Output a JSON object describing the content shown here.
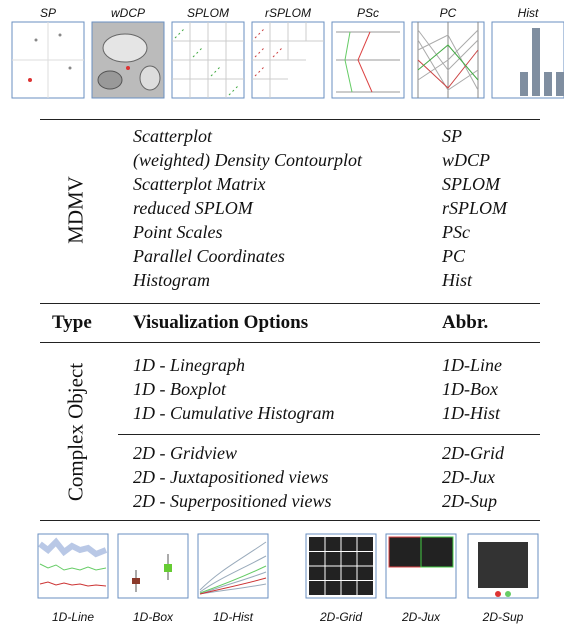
{
  "thumbnails_top": [
    "SP",
    "wDCP",
    "SPLOM",
    "rSPLOM",
    "PSc",
    "PC",
    "Hist"
  ],
  "table": {
    "header": {
      "type": "Type",
      "options": "Visualization Options",
      "abbr": "Abbr."
    },
    "groups": [
      {
        "type": "MDMV",
        "rows": [
          {
            "option": "Scatterplot",
            "abbr": "SP"
          },
          {
            "option": "(weighted) Density Contourplot",
            "abbr": "wDCP"
          },
          {
            "option": "Scatterplot Matrix",
            "abbr": "SPLOM"
          },
          {
            "option": "reduced SPLOM",
            "abbr": "rSPLOM"
          },
          {
            "option": "Point Scales",
            "abbr": "PSc"
          },
          {
            "option": "Parallel Coordinates",
            "abbr": "PC"
          },
          {
            "option": "Histogram",
            "abbr": "Hist"
          }
        ]
      },
      {
        "type": "Complex Object",
        "rows": [
          {
            "option": "1D - Linegraph",
            "abbr": "1D-Line"
          },
          {
            "option": "1D - Boxplot",
            "abbr": "1D-Box"
          },
          {
            "option": "1D - Cumulative Histogram",
            "abbr": "1D-Hist"
          },
          {
            "option": "2D - Gridview",
            "abbr": "2D-Grid"
          },
          {
            "option": "2D - Juxtapositioned views",
            "abbr": "2D-Jux"
          },
          {
            "option": "2D - Superpositioned views",
            "abbr": "2D-Sup"
          }
        ]
      }
    ]
  },
  "thumbnails_bottom": [
    "1D-Line",
    "1D-Box",
    "1D-Hist",
    "2D-Grid",
    "2D-Jux",
    "2D-Sup"
  ]
}
